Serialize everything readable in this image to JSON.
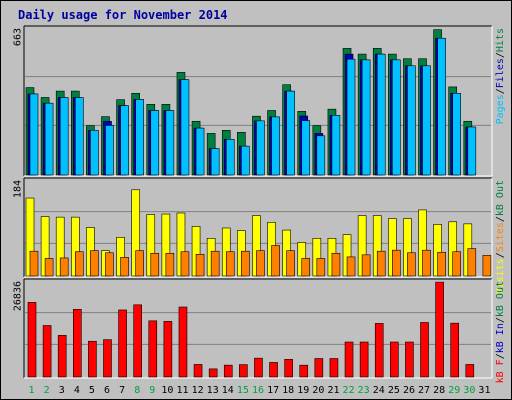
{
  "chart_data": {
    "title": "Daily usage for November 2014",
    "days": [
      "1",
      "2",
      "3",
      "4",
      "5",
      "6",
      "7",
      "8",
      "9",
      "10",
      "11",
      "12",
      "13",
      "14",
      "15",
      "16",
      "17",
      "18",
      "19",
      "20",
      "21",
      "22",
      "23",
      "24",
      "25",
      "26",
      "27",
      "28",
      "29",
      "30",
      "31"
    ],
    "weekend_days": [
      "1",
      "2",
      "8",
      "9",
      "15",
      "16",
      "22",
      "23",
      "29",
      "30"
    ],
    "panels": [
      {
        "type": "bar",
        "max_label": "663",
        "ylim": [
          0,
          663
        ],
        "legend": [
          "Pages",
          "/",
          "Files",
          "/",
          "Hits"
        ],
        "legend_colors": [
          "#00c0ff",
          "#000000",
          "#0000c0",
          "#000000",
          "#008040"
        ],
        "series": [
          {
            "name": "Hits",
            "color": "#008040",
            "values": [
              397,
              352,
              381,
              381,
              224,
              265,
              342,
              371,
              321,
              321,
              466,
              244,
              189,
              203,
              194,
              267,
              293,
              410,
              289,
              224,
              299,
              575,
              549,
              575,
              549,
              528,
              528,
              660,
              400,
              244,
              0
            ]
          },
          {
            "name": "Files",
            "color": "#0000c0",
            "values": [
              368,
              326,
              352,
              352,
              203,
              244,
              315,
              343,
              293,
              293,
              433,
              213,
              120,
              162,
              131,
              246,
              264,
              381,
              268,
              189,
              271,
              549,
              523,
              549,
              523,
              496,
              496,
              621,
              371,
              218,
              0
            ]
          },
          {
            "name": "Pages",
            "color": "#00c0ff",
            "values": [
              368,
              326,
              352,
              352,
              203,
              225,
              315,
              343,
              293,
              293,
              433,
              213,
              120,
              162,
              131,
              246,
              264,
              381,
              247,
              178,
              271,
              526,
              523,
              549,
              523,
              496,
              496,
              621,
              371,
              218,
              0
            ]
          }
        ]
      },
      {
        "type": "bar",
        "max_label": "184",
        "ylim": [
          0,
          184
        ],
        "legend": [
          "Visits",
          "/",
          "Sites",
          "/",
          "kB Out"
        ],
        "legend_colors": [
          "#ffff00",
          "#000000",
          "#ff8000",
          "#000000",
          "#008040"
        ],
        "series": [
          {
            "name": "Visits",
            "color": "#ffff00",
            "values": [
              151,
              115,
              114,
              114,
              94,
              49,
              75,
              167,
              119,
              120,
              122,
              96,
              73,
              93,
              88,
              117,
              104,
              89,
              65,
              73,
              73,
              80,
              117,
              117,
              111,
              111,
              128,
              100,
              105,
              101,
              0
            ]
          },
          {
            "name": "Sites",
            "color": "#ff8000",
            "values": [
              48,
              34,
              35,
              47,
              49,
              45,
              36,
              49,
              44,
              44,
              47,
              42,
              48,
              47,
              48,
              49,
              59,
              49,
              34,
              34,
              44,
              37,
              41,
              48,
              50,
              45,
              50,
              46,
              47,
              53,
              40
            ]
          }
        ]
      },
      {
        "type": "bar",
        "max_label": "26836",
        "ylim": [
          0,
          26836
        ],
        "legend": [
          "kB F",
          "/",
          "kB In",
          "/",
          "kB Out"
        ],
        "legend_colors": [
          "#ff0000",
          "#000000",
          "#0000c0",
          "#000000",
          "#008040"
        ],
        "series": [
          {
            "name": "kB F",
            "color": "#ff0000",
            "values": [
              21080,
              14550,
              11770,
              19120,
              10100,
              10550,
              18940,
              20390,
              15870,
              15710,
              19770,
              3550,
              2290,
              3350,
              3500,
              5320,
              4110,
              5000,
              3340,
              5220,
              5220,
              9880,
              9880,
              15140,
              9880,
              9880,
              15400,
              26800,
              15210,
              3550,
              0
            ]
          }
        ]
      }
    ]
  }
}
